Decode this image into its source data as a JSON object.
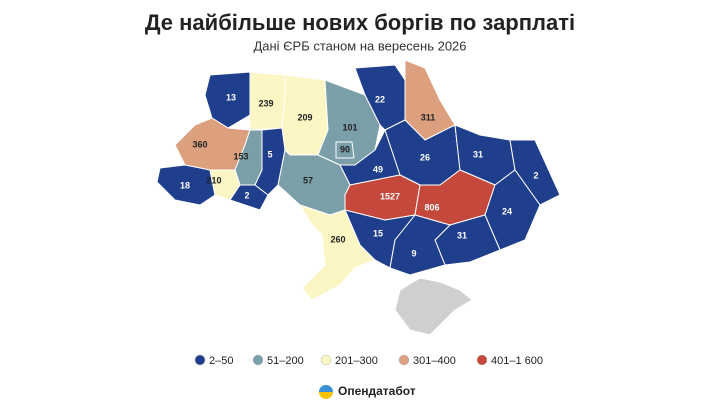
{
  "header": {
    "title": "Де найбільше нових боргів по зарплаті",
    "subtitle": "Дані ЄРБ станом на вересень 2026"
  },
  "regions": [
    {
      "value": 13,
      "color": "#1f3f8c"
    },
    {
      "value": 239,
      "color": "#fcf6c5"
    },
    {
      "value": 209,
      "color": "#fcf6c5"
    },
    {
      "value": 101,
      "color": "#7b9fa9"
    },
    {
      "value": 90,
      "color": "#7b9fa9"
    },
    {
      "value": 22,
      "color": "#1f3f8c"
    },
    {
      "value": 311,
      "color": "#dca07f"
    },
    {
      "value": 360,
      "color": "#dca07f"
    },
    {
      "value": 153,
      "color": "#7b9fa9"
    },
    {
      "value": 5,
      "color": "#1f3f8c"
    },
    {
      "value": 49,
      "color": "#1f3f8c"
    },
    {
      "value": 26,
      "color": "#1f3f8c"
    },
    {
      "value": 31,
      "color": "#1f3f8c"
    },
    {
      "value": 2,
      "color": "#1f3f8c"
    },
    {
      "value": 18,
      "color": "#1f3f8c"
    },
    {
      "value": 210,
      "color": "#fcf6c5"
    },
    {
      "value": 2,
      "color": "#1f3f8c"
    },
    {
      "value": 57,
      "color": "#7b9fa9"
    },
    {
      "value": 1527,
      "color": "#c4483b"
    },
    {
      "value": 806,
      "color": "#c4483b"
    },
    {
      "value": 24,
      "color": "#1f3f8c"
    },
    {
      "value": 260,
      "color": "#fcf6c5"
    },
    {
      "value": 15,
      "color": "#1f3f8c"
    },
    {
      "value": 31,
      "color": "#1f3f8c"
    },
    {
      "value": 9,
      "color": "#1f3f8c"
    }
  ],
  "legend": [
    {
      "label": "2–50",
      "color": "#1f3f8c"
    },
    {
      "label": "51–200",
      "color": "#7b9fa9"
    },
    {
      "label": "201–300",
      "color": "#fcf6c5"
    },
    {
      "label": "301–400",
      "color": "#dca07f"
    },
    {
      "label": "401–1 600",
      "color": "#c4483b"
    }
  ],
  "brand": {
    "name": "Опендатабот"
  }
}
